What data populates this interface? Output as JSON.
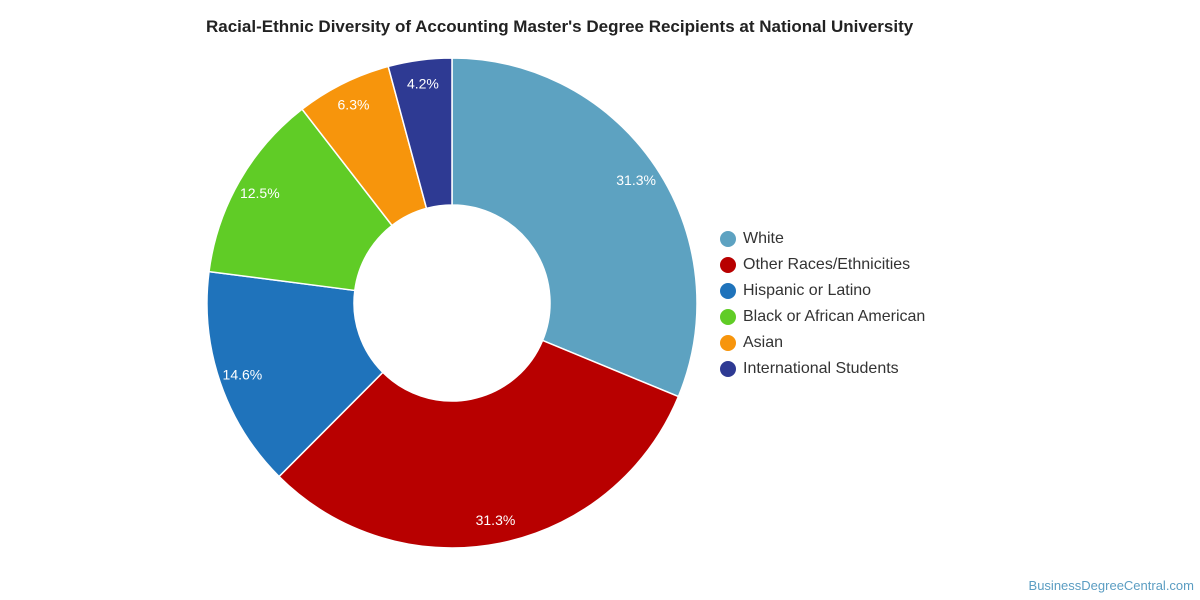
{
  "chart_data": {
    "type": "pie",
    "title": "Racial-Ethnic Diversity of Accounting Master's Degree Recipients at National University",
    "categories": [
      "White",
      "Other Races/Ethnicities",
      "Hispanic or Latino",
      "Black or African American",
      "Asian",
      "International Students"
    ],
    "values": [
      31.3,
      31.3,
      14.6,
      12.5,
      6.3,
      4.2
    ],
    "value_labels": [
      "31.3%",
      "31.3%",
      "14.6%",
      "12.5%",
      "6.3%",
      "4.2%"
    ],
    "colors": [
      "#5da2c1",
      "#b80000",
      "#1f73bb",
      "#60cc26",
      "#f7950c",
      "#2e3a93"
    ],
    "donut": true,
    "legend_position": "right"
  },
  "watermark": "BusinessDegreeCentral.com"
}
